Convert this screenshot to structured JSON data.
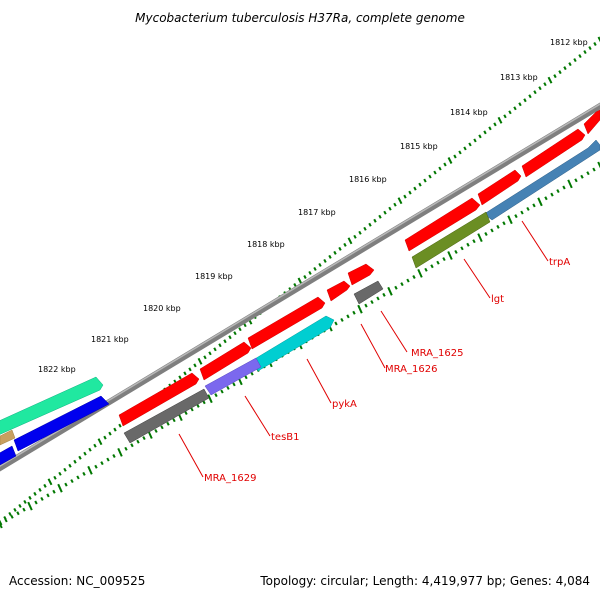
{
  "title": "Mycobacterium tuberculosis H37Ra, complete genome",
  "ruler": {
    "tick_labels": [
      "1812 kbp",
      "1813 kbp",
      "1814 kbp",
      "1815 kbp",
      "1816 kbp",
      "1817 kbp",
      "1818 kbp",
      "1819 kbp",
      "1820 kbp",
      "1821 kbp",
      "1822 kbp"
    ]
  },
  "genes": [
    {
      "name": "trpA",
      "color": "#4682b4"
    },
    {
      "name": "lgt",
      "color": "#6b8e23"
    },
    {
      "name": "MRA_1625",
      "color": "#696969"
    },
    {
      "name": "MRA_1626",
      "color": "#ff0000"
    },
    {
      "name": "pykA",
      "color": "#00ced1"
    },
    {
      "name": "tesB1",
      "color": "#7b68ee"
    },
    {
      "name": "MRA_1629",
      "color": "#696969"
    }
  ],
  "colors": {
    "forward_strand": "#ff0000",
    "backbone": "#808080",
    "ruler_ticks": "#007700",
    "labels": "#e00000"
  },
  "footer": {
    "accession": "Accession: NC_009525",
    "summary": "Topology: circular; Length: 4,419,977 bp; Genes: 4,084"
  }
}
